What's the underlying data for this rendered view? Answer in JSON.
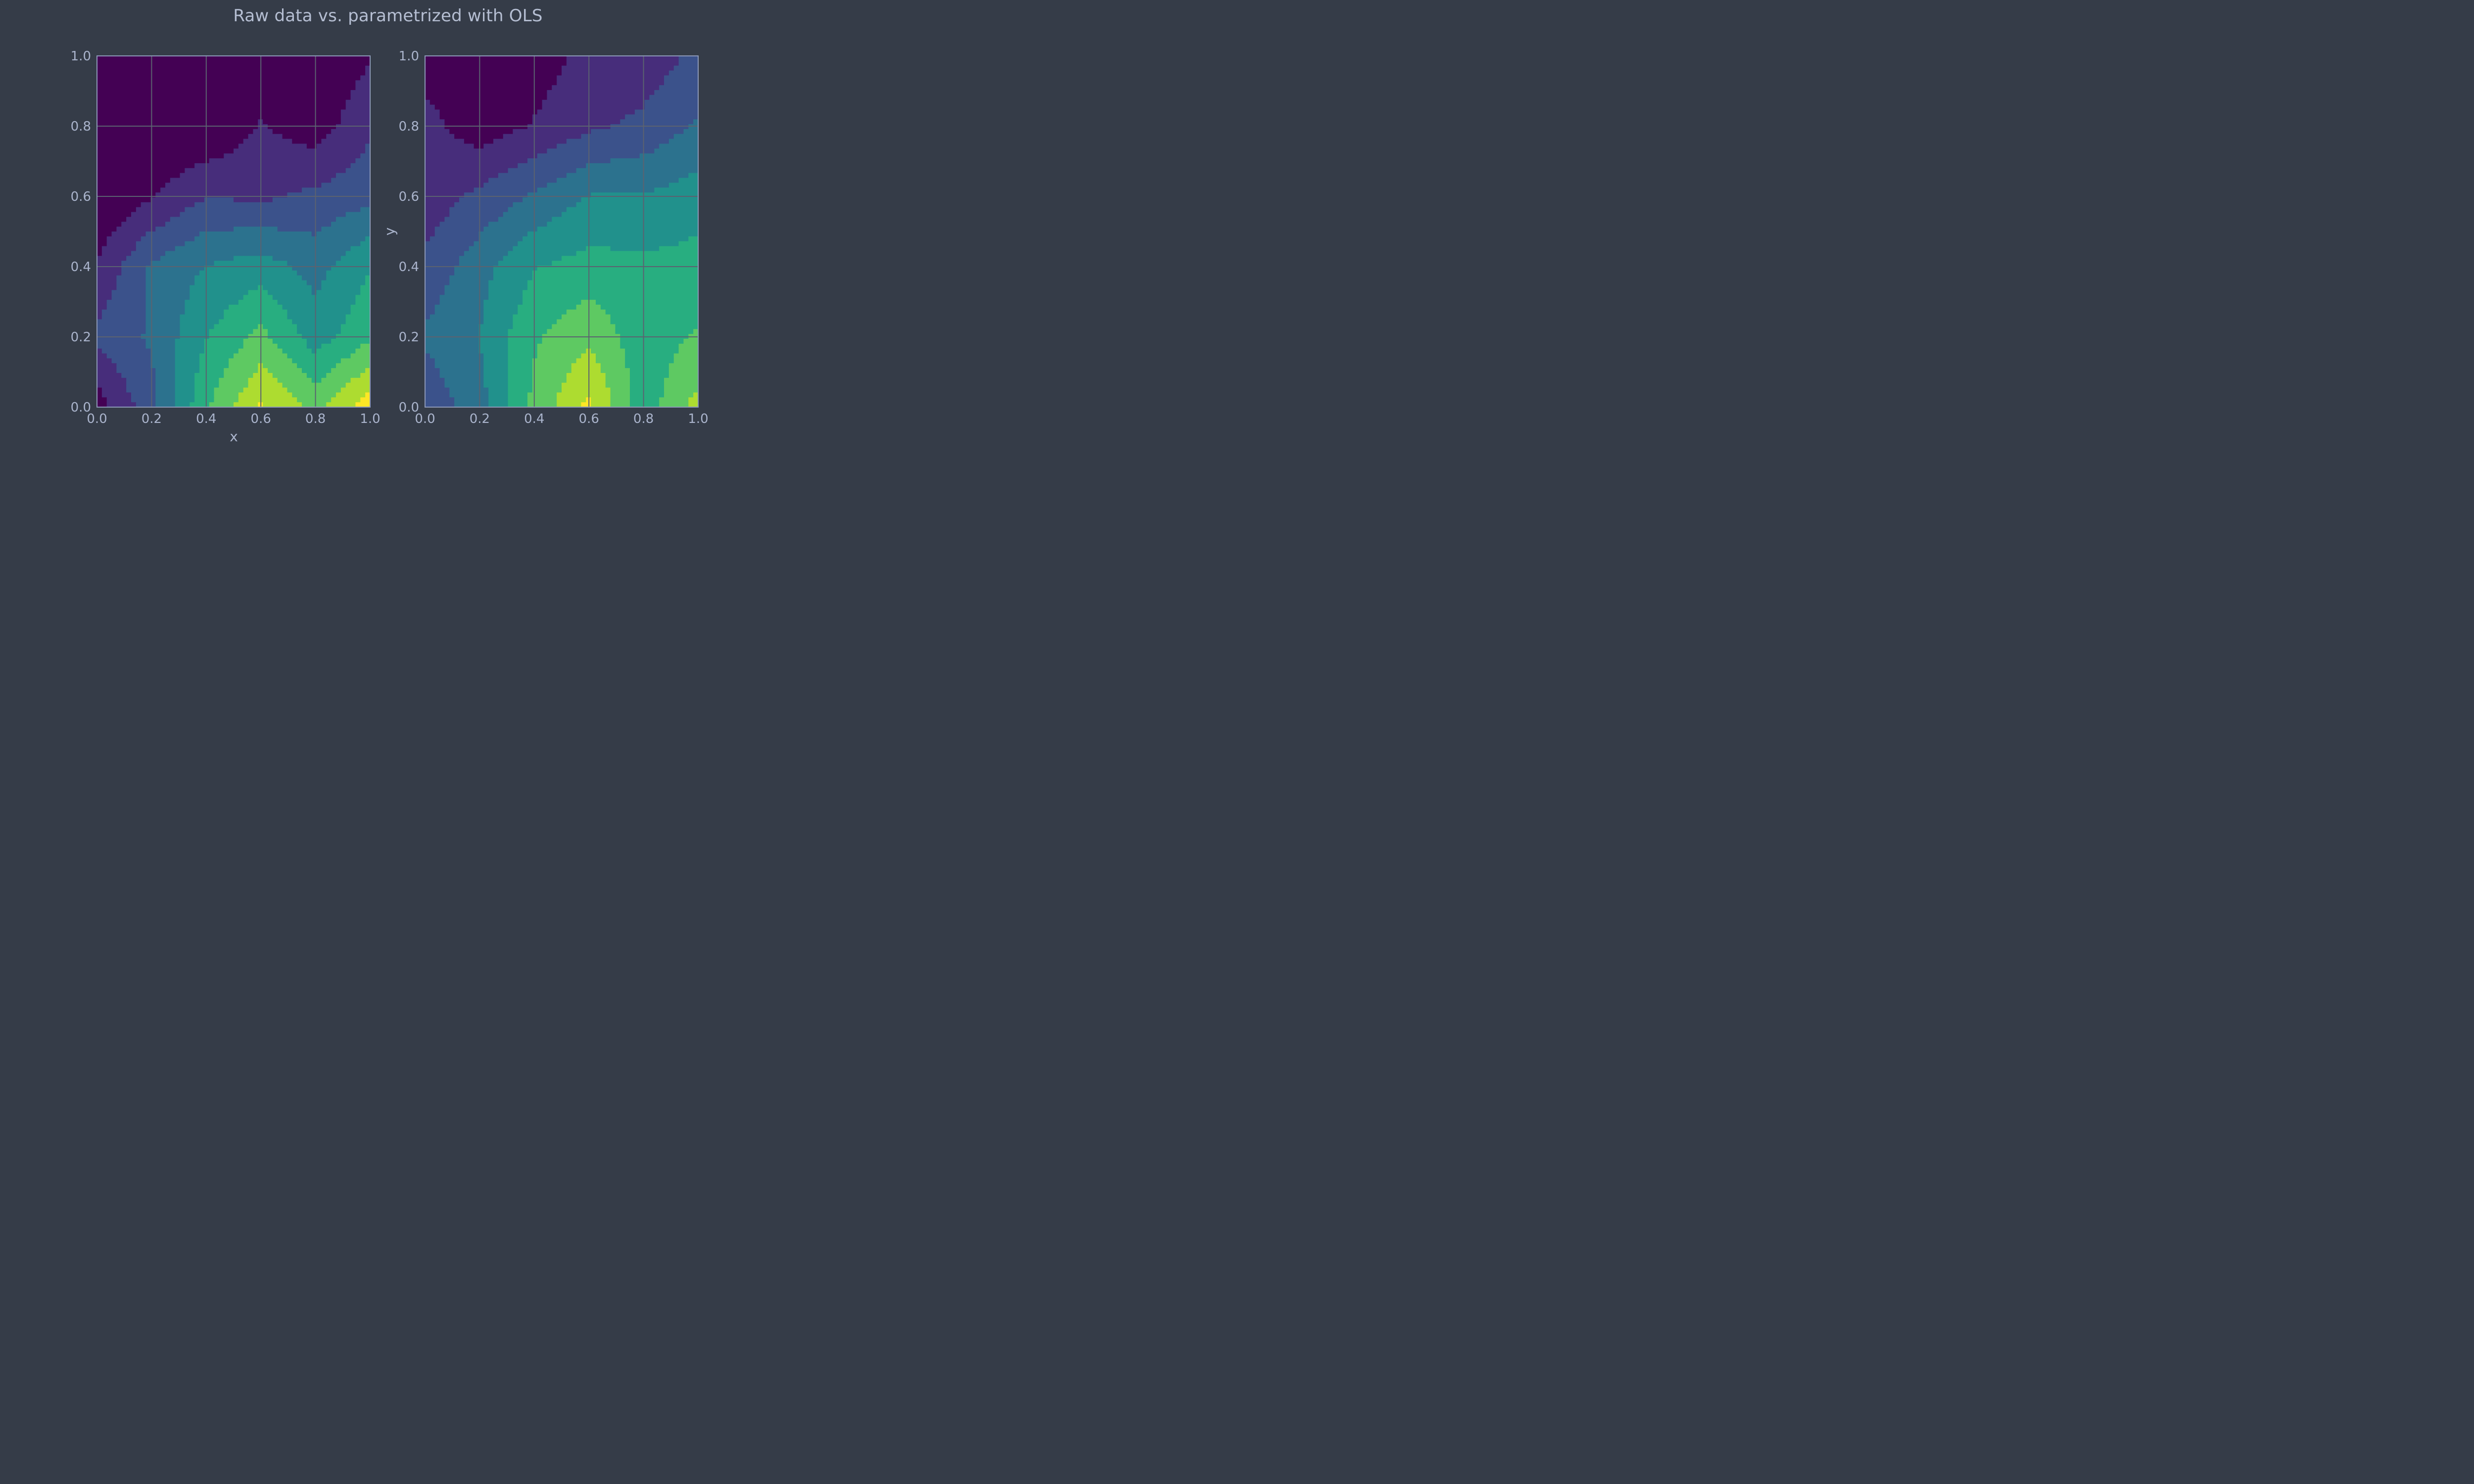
{
  "title": "Raw data vs. parametrized with OLS",
  "colors": {
    "background": "#353c48",
    "grid": "#5b6270",
    "frame": "#8d99b8",
    "text": "#aab4cc",
    "viridis_levels": [
      "#440154",
      "#472d7b",
      "#3b528b",
      "#2c728e",
      "#21918c",
      "#28ae80",
      "#5ec962",
      "#addc30",
      "#fde725"
    ]
  },
  "chart_data": [
    {
      "type": "heatmap",
      "subtype": "filled-contour",
      "title": "",
      "xlabel": "x",
      "ylabel": "",
      "xlim": [
        0.0,
        1.0
      ],
      "ylim": [
        0.0,
        1.0
      ],
      "xticks": [
        "0.0",
        "0.2",
        "0.4",
        "0.6",
        "0.8",
        "1.0"
      ],
      "yticks": [
        "0.0",
        "0.2",
        "0.4",
        "0.6",
        "0.8",
        "1.0"
      ],
      "grid": true,
      "colormap": "viridis",
      "x": [
        0.0,
        0.2,
        0.4,
        0.6,
        0.8,
        1.0
      ],
      "y": [
        1.0,
        0.8,
        0.6,
        0.4,
        0.2,
        0.0
      ],
      "z": [
        [
          0.0,
          0.0,
          0.0,
          0.0,
          0.0,
          0.1
        ],
        [
          0.0,
          0.0,
          0.0,
          0.12,
          0.05,
          0.2
        ],
        [
          0.0,
          0.1,
          0.22,
          0.2,
          0.25,
          0.3
        ],
        [
          0.12,
          0.35,
          0.45,
          0.5,
          0.4,
          0.55
        ],
        [
          0.25,
          0.35,
          0.55,
          0.7,
          0.5,
          0.65
        ],
        [
          0.05,
          0.3,
          0.65,
          0.9,
          0.75,
          0.95
        ]
      ]
    },
    {
      "type": "heatmap",
      "subtype": "filled-contour",
      "title": "",
      "xlabel": "",
      "ylabel": "y",
      "xlim": [
        0.0,
        1.0
      ],
      "ylim": [
        0.0,
        1.0
      ],
      "xticks": [
        "0.0",
        "0.2",
        "0.4",
        "0.6",
        "0.8",
        "1.0"
      ],
      "yticks": [
        "0.0",
        "0.2",
        "0.4",
        "0.6",
        "0.8",
        "1.0"
      ],
      "grid": true,
      "colormap": "viridis",
      "x": [
        0.0,
        0.2,
        0.4,
        0.6,
        0.8,
        1.0
      ],
      "y": [
        1.0,
        0.8,
        0.6,
        0.4,
        0.2,
        0.0
      ],
      "z": [
        [
          0.05,
          0.05,
          0.05,
          0.15,
          0.15,
          0.25
        ],
        [
          0.15,
          0.05,
          0.12,
          0.2,
          0.25,
          0.35
        ],
        [
          0.15,
          0.25,
          0.35,
          0.45,
          0.45,
          0.5
        ],
        [
          0.25,
          0.4,
          0.55,
          0.6,
          0.58,
          0.6
        ],
        [
          0.35,
          0.45,
          0.65,
          0.75,
          0.6,
          0.68
        ],
        [
          0.25,
          0.4,
          0.7,
          0.92,
          0.6,
          0.82
        ]
      ]
    }
  ]
}
